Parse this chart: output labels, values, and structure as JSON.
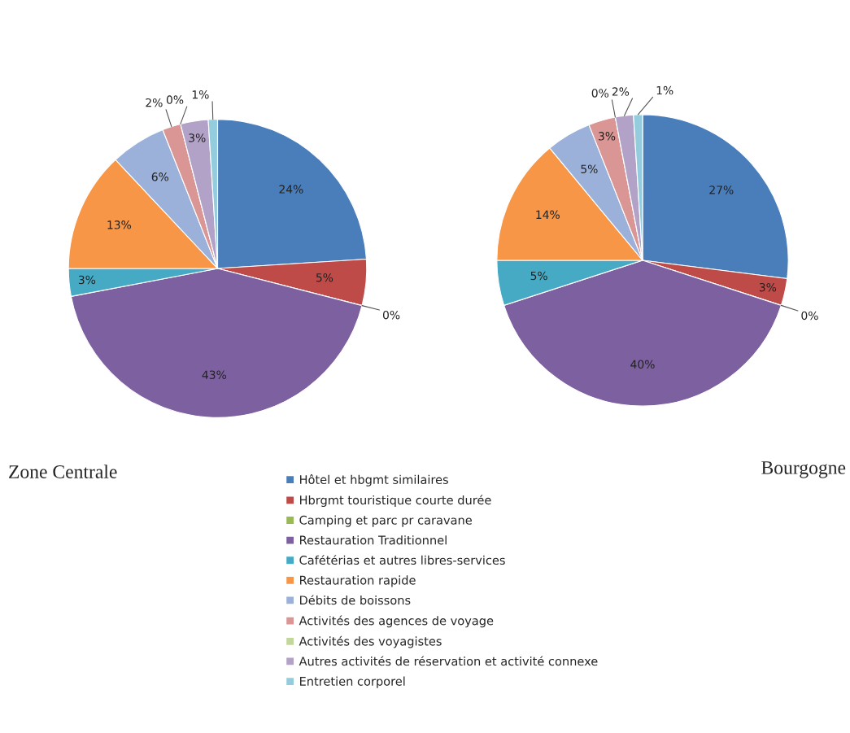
{
  "chart_data": [
    {
      "type": "pie",
      "title": "Zone Centrale",
      "categories": [
        "Hôtel et hbgmt similaires",
        "Hbrgmt touristique courte durée",
        "Camping et parc pr caravane",
        "Restauration Traditionnel",
        "Cafétérias et autres libres-services",
        "Restauration rapide",
        "Débits de boissons",
        "Activités des agences de voyage",
        "Activités des voyagistes",
        "Autres activités de réservation et activité connexe",
        "Entretien corporel"
      ],
      "values": [
        24,
        5,
        0,
        43,
        3,
        13,
        6,
        2,
        0,
        3,
        1
      ],
      "colors": [
        "#4a7ebb",
        "#be4b48",
        "#98b954",
        "#7d60a0",
        "#46aac5",
        "#f79646",
        "#9bb1d9",
        "#d99694",
        "#c3d69b",
        "#b3a2c7",
        "#93cddd"
      ],
      "value_labels": [
        "24%",
        "5%",
        "0%",
        "43%",
        "3%",
        "13%",
        "6%",
        "2%",
        "0%",
        "3%",
        "1%"
      ],
      "legend": "bottom"
    },
    {
      "type": "pie",
      "title": "Bourgogne",
      "categories": [
        null,
        null,
        null,
        null,
        null,
        null,
        null,
        null,
        null,
        null,
        null
      ],
      "values": [
        27,
        3,
        0,
        40,
        5,
        14,
        5,
        3,
        0,
        2,
        1
      ],
      "colors": [
        "#4a7ebb",
        "#be4b48",
        "#98b954",
        "#7d60a0",
        "#46aac5",
        "#f79646",
        "#9bb1d9",
        "#d99694",
        "#c3d69b",
        "#b3a2c7",
        "#93cddd"
      ],
      "value_labels": [
        "27%",
        "3%",
        "0%",
        "40%",
        "5%",
        "14%",
        "5%",
        "3%",
        "0%",
        "2%",
        "1%"
      ]
    }
  ]
}
